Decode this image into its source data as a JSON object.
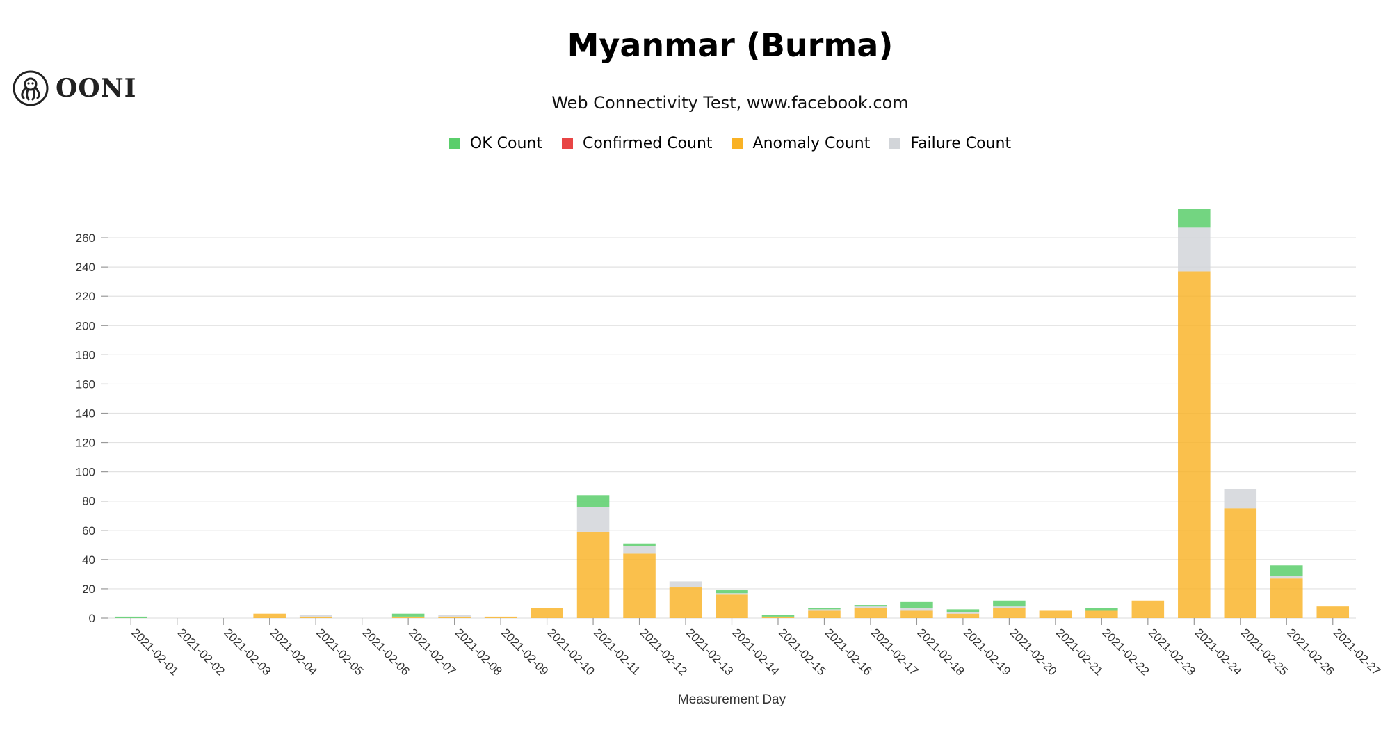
{
  "logo": {
    "text": "OONI",
    "icon": "octopus-logo-icon"
  },
  "colors": {
    "ok": "#5ace6b",
    "confirmed": "#e84545",
    "anomaly": "#f9b225",
    "failure": "#d2d5d9"
  },
  "chart_data": {
    "type": "bar",
    "stacked": true,
    "title": "Myanmar (Burma)",
    "subtitle": "Web Connectivity Test, www.facebook.com",
    "xlabel": "Measurement Day",
    "ylabel": "",
    "ylim": [
      0,
      280
    ],
    "yticks": [
      0,
      20,
      40,
      60,
      80,
      100,
      120,
      140,
      160,
      180,
      200,
      220,
      240,
      260
    ],
    "grid": true,
    "legend_position": "top-center",
    "categories": [
      "2021-02-01",
      "2021-02-02",
      "2021-02-03",
      "2021-02-04",
      "2021-02-05",
      "2021-02-06",
      "2021-02-07",
      "2021-02-08",
      "2021-02-09",
      "2021-02-10",
      "2021-02-11",
      "2021-02-12",
      "2021-02-13",
      "2021-02-14",
      "2021-02-15",
      "2021-02-16",
      "2021-02-17",
      "2021-02-18",
      "2021-02-19",
      "2021-02-20",
      "2021-02-21",
      "2021-02-22",
      "2021-02-23",
      "2021-02-24",
      "2021-02-25",
      "2021-02-26",
      "2021-02-27"
    ],
    "series": [
      {
        "name": "OK Count",
        "key": "ok",
        "values": [
          1,
          0,
          0,
          0,
          0,
          0,
          2,
          0,
          0,
          0,
          8,
          2,
          0,
          2,
          1,
          1,
          1,
          4,
          2,
          4,
          0,
          2,
          0,
          13,
          0,
          7,
          0
        ]
      },
      {
        "name": "Confirmed Count",
        "key": "confirmed",
        "values": [
          0,
          0,
          0,
          0,
          0,
          0,
          0,
          0,
          0,
          0,
          0,
          0,
          0,
          0,
          0,
          0,
          0,
          0,
          0,
          0,
          0,
          0,
          0,
          0,
          0,
          0,
          0
        ]
      },
      {
        "name": "Anomaly Count",
        "key": "anomaly",
        "values": [
          0,
          0,
          0,
          3,
          1,
          0,
          1,
          1,
          1,
          7,
          59,
          44,
          21,
          16,
          1,
          5,
          7,
          5,
          3,
          7,
          5,
          5,
          12,
          237,
          75,
          27,
          8
        ]
      },
      {
        "name": "Failure Count",
        "key": "failure",
        "values": [
          0,
          0,
          0,
          0,
          1,
          0,
          0,
          1,
          0,
          0,
          17,
          5,
          4,
          1,
          0,
          1,
          1,
          2,
          1,
          1,
          0,
          0,
          0,
          30,
          13,
          2,
          0
        ]
      }
    ]
  }
}
